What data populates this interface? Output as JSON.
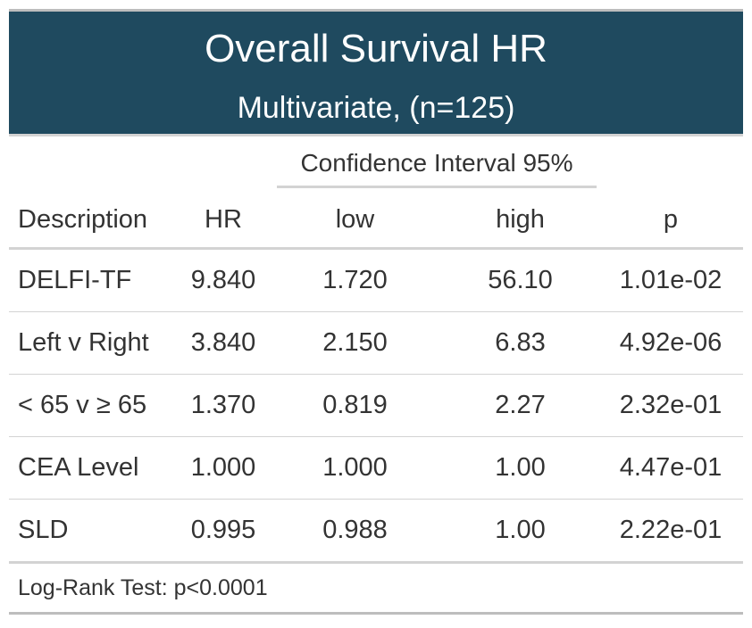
{
  "table": {
    "title": "Overall Survival HR",
    "subtitle": "Multivariate, (n=125)",
    "spanner": "Confidence Interval 95%",
    "columns": [
      "Description",
      "HR",
      "low",
      "high",
      "p"
    ],
    "rows": [
      [
        "DELFI-TF",
        "9.840",
        "1.720",
        "56.10",
        "1.01e-02"
      ],
      [
        "Left v Right",
        "3.840",
        "2.150",
        "6.83",
        "4.92e-06"
      ],
      [
        "< 65 v ≥ 65",
        "1.370",
        "0.819",
        "2.27",
        "2.32e-01"
      ],
      [
        "CEA Level",
        "1.000",
        "1.000",
        "1.00",
        "4.47e-01"
      ],
      [
        "SLD",
        "0.995",
        "0.988",
        "1.00",
        "2.22e-01"
      ]
    ],
    "footnote": "Log-Rank Test: p<0.0001"
  },
  "colors": {
    "header_bg": "#1f4a5f",
    "header_text": "#ffffff",
    "rule": "#d3d3d3"
  }
}
